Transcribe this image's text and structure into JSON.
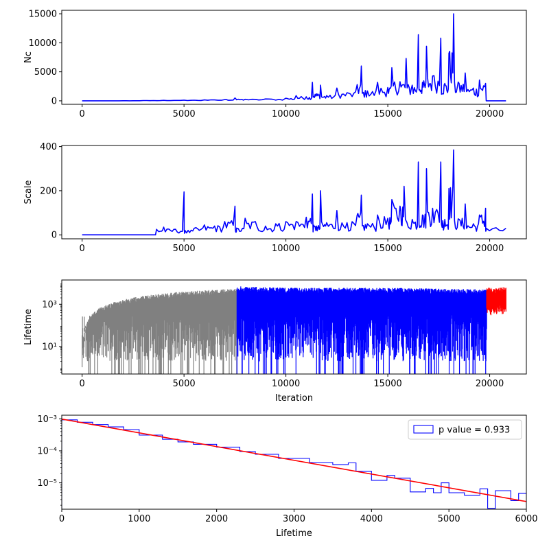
{
  "chart_data": [
    {
      "type": "line",
      "ylabel": "Nc",
      "xlabel": "",
      "xlim": [
        -1000,
        21800
      ],
      "ylim": [
        -600,
        15600
      ],
      "xticks": [
        0,
        5000,
        10000,
        15000,
        20000
      ],
      "yticks": [
        0,
        5000,
        10000,
        15000
      ],
      "grid": false,
      "series": [
        {
          "color": "#0000ff",
          "points": [
            [
              0,
              0
            ],
            [
              1000,
              5
            ],
            [
              2000,
              20
            ],
            [
              3000,
              50
            ],
            [
              4000,
              80
            ],
            [
              5000,
              120
            ],
            [
              6000,
              160
            ],
            [
              7000,
              220
            ],
            [
              7500,
              500
            ],
            [
              8000,
              260
            ],
            [
              9000,
              320
            ],
            [
              10000,
              450
            ],
            [
              10500,
              900
            ],
            [
              11000,
              700
            ],
            [
              11300,
              3200
            ],
            [
              11500,
              1200
            ],
            [
              11700,
              2700
            ],
            [
              12000,
              900
            ],
            [
              12500,
              2200
            ],
            [
              13000,
              1400
            ],
            [
              13500,
              2800
            ],
            [
              13700,
              6000
            ],
            [
              14000,
              1700
            ],
            [
              14500,
              3200
            ],
            [
              15000,
              2300
            ],
            [
              15200,
              5700
            ],
            [
              15600,
              3300
            ],
            [
              15900,
              7300
            ],
            [
              16200,
              2700
            ],
            [
              16500,
              11400
            ],
            [
              16700,
              3200
            ],
            [
              16900,
              9400
            ],
            [
              17200,
              4300
            ],
            [
              17600,
              10800
            ],
            [
              17800,
              3000
            ],
            [
              18000,
              8200
            ],
            [
              18230,
              15000
            ],
            [
              18500,
              3000
            ],
            [
              18800,
              4800
            ],
            [
              19200,
              2200
            ],
            [
              19500,
              3600
            ],
            [
              19800,
              3000
            ],
            [
              19830,
              0
            ],
            [
              20800,
              0
            ]
          ]
        }
      ]
    },
    {
      "type": "line",
      "ylabel": "Scale",
      "xlabel": "",
      "xlim": [
        -1000,
        21800
      ],
      "ylim": [
        -18,
        405
      ],
      "xticks": [
        0,
        5000,
        10000,
        15000,
        20000
      ],
      "yticks": [
        0,
        200,
        400
      ],
      "grid": false,
      "series": [
        {
          "color": "#0000ff",
          "points": [
            [
              0,
              0
            ],
            [
              3600,
              0
            ],
            [
              3650,
              25
            ],
            [
              4000,
              35
            ],
            [
              4500,
              25
            ],
            [
              5000,
              195
            ],
            [
              5050,
              20
            ],
            [
              5500,
              30
            ],
            [
              6000,
              45
            ],
            [
              6500,
              40
            ],
            [
              7000,
              60
            ],
            [
              7500,
              130
            ],
            [
              7600,
              30
            ],
            [
              8000,
              75
            ],
            [
              8500,
              60
            ],
            [
              9000,
              40
            ],
            [
              9500,
              50
            ],
            [
              10000,
              60
            ],
            [
              10500,
              60
            ],
            [
              11000,
              80
            ],
            [
              11300,
              185
            ],
            [
              11500,
              40
            ],
            [
              11700,
              200
            ],
            [
              12000,
              55
            ],
            [
              12500,
              110
            ],
            [
              13000,
              55
            ],
            [
              13500,
              90
            ],
            [
              13700,
              180
            ],
            [
              14000,
              50
            ],
            [
              14500,
              90
            ],
            [
              15000,
              75
            ],
            [
              15200,
              160
            ],
            [
              15600,
              130
            ],
            [
              15800,
              220
            ],
            [
              16200,
              70
            ],
            [
              16500,
              330
            ],
            [
              16700,
              90
            ],
            [
              16900,
              300
            ],
            [
              17200,
              120
            ],
            [
              17600,
              330
            ],
            [
              17800,
              70
            ],
            [
              18000,
              210
            ],
            [
              18230,
              385
            ],
            [
              18500,
              70
            ],
            [
              18800,
              140
            ],
            [
              19200,
              50
            ],
            [
              19500,
              90
            ],
            [
              19800,
              120
            ],
            [
              19830,
              30
            ],
            [
              20800,
              30
            ]
          ]
        }
      ]
    },
    {
      "type": "line",
      "ylabel": "Lifetime",
      "xlabel": "Iteration",
      "xlim": [
        -1000,
        21800
      ],
      "ylim": [
        0.5,
        14000
      ],
      "yscale": "log",
      "xticks": [
        0,
        5000,
        10000,
        15000,
        20000
      ],
      "yticks": [
        10,
        1000
      ],
      "ytick_labels": [
        "10¹",
        "10³"
      ],
      "grid": false,
      "series": [
        {
          "color": "#808080",
          "x_range": [
            0,
            7600
          ],
          "min": 0.5,
          "max_envelope": [
            [
              0,
              1
            ],
            [
              200,
              100
            ],
            [
              1000,
              800
            ],
            [
              3000,
              2500
            ],
            [
              5000,
              4000
            ],
            [
              7600,
              5500
            ]
          ]
        },
        {
          "color": "#0000ff",
          "x_range": [
            7600,
            19850
          ],
          "min": 0.5,
          "max_envelope": [
            [
              7600,
              7000
            ],
            [
              10000,
              6000
            ],
            [
              15000,
              6000
            ],
            [
              19850,
              5000
            ]
          ]
        },
        {
          "color": "#ff0000",
          "x_range": [
            19850,
            20800
          ],
          "min": 300,
          "max_envelope": [
            [
              19850,
              6000
            ],
            [
              20800,
              6500
            ]
          ]
        }
      ]
    },
    {
      "type": "histogram",
      "ylabel": "",
      "xlabel": "Lifetime",
      "xlim": [
        0,
        6000
      ],
      "ylim": [
        1.5e-06,
        0.0013
      ],
      "yscale": "log",
      "xticks": [
        0,
        1000,
        2000,
        3000,
        4000,
        5000,
        6000
      ],
      "yticks": [
        1e-05,
        0.0001,
        0.001
      ],
      "ytick_labels": [
        "10⁻⁵",
        "10⁻⁴",
        "10⁻³"
      ],
      "legend": {
        "label": "p value = 0.933",
        "position": "top-right"
      },
      "bins": [
        {
          "x0": 0,
          "x1": 200,
          "y": 0.00093
        },
        {
          "x0": 200,
          "x1": 400,
          "y": 0.00078
        },
        {
          "x0": 400,
          "x1": 600,
          "y": 0.00066
        },
        {
          "x0": 600,
          "x1": 800,
          "y": 0.00056
        },
        {
          "x0": 800,
          "x1": 1000,
          "y": 0.00046
        },
        {
          "x0": 1000,
          "x1": 1300,
          "y": 0.00031
        },
        {
          "x0": 1300,
          "x1": 1500,
          "y": 0.00023
        },
        {
          "x0": 1500,
          "x1": 1700,
          "y": 0.00019
        },
        {
          "x0": 1700,
          "x1": 2000,
          "y": 0.00016
        },
        {
          "x0": 2000,
          "x1": 2300,
          "y": 0.00013
        },
        {
          "x0": 2300,
          "x1": 2500,
          "y": 9.5e-05
        },
        {
          "x0": 2500,
          "x1": 2800,
          "y": 7.8e-05
        },
        {
          "x0": 2800,
          "x1": 3200,
          "y": 5.8e-05
        },
        {
          "x0": 3200,
          "x1": 3500,
          "y": 4.3e-05
        },
        {
          "x0": 3500,
          "x1": 3700,
          "y": 3.7e-05
        },
        {
          "x0": 3700,
          "x1": 3800,
          "y": 4.2e-05
        },
        {
          "x0": 3800,
          "x1": 4000,
          "y": 2.3e-05
        },
        {
          "x0": 4000,
          "x1": 4200,
          "y": 1.2e-05
        },
        {
          "x0": 4200,
          "x1": 4300,
          "y": 1.7e-05
        },
        {
          "x0": 4300,
          "x1": 4500,
          "y": 1.4e-05
        },
        {
          "x0": 4500,
          "x1": 4700,
          "y": 5.2e-06
        },
        {
          "x0": 4700,
          "x1": 4800,
          "y": 6.7e-06
        },
        {
          "x0": 4800,
          "x1": 4900,
          "y": 4.9e-06
        },
        {
          "x0": 4900,
          "x1": 5000,
          "y": 1e-05
        },
        {
          "x0": 5000,
          "x1": 5200,
          "y": 4.9e-06
        },
        {
          "x0": 5200,
          "x1": 5400,
          "y": 4.1e-06
        },
        {
          "x0": 5400,
          "x1": 5500,
          "y": 6.5e-06
        },
        {
          "x0": 5500,
          "x1": 5600,
          "y": 1.6e-06
        },
        {
          "x0": 5600,
          "x1": 5800,
          "y": 5.7e-06
        },
        {
          "x0": 5800,
          "x1": 5900,
          "y": 2.8e-06
        },
        {
          "x0": 5900,
          "x1": 6000,
          "y": 4.7e-06
        }
      ],
      "hist_color": "#0000ff",
      "fit": {
        "color": "#ff0000",
        "points": [
          [
            0,
            0.00098
          ],
          [
            6000,
            2.6e-06
          ]
        ]
      }
    }
  ]
}
